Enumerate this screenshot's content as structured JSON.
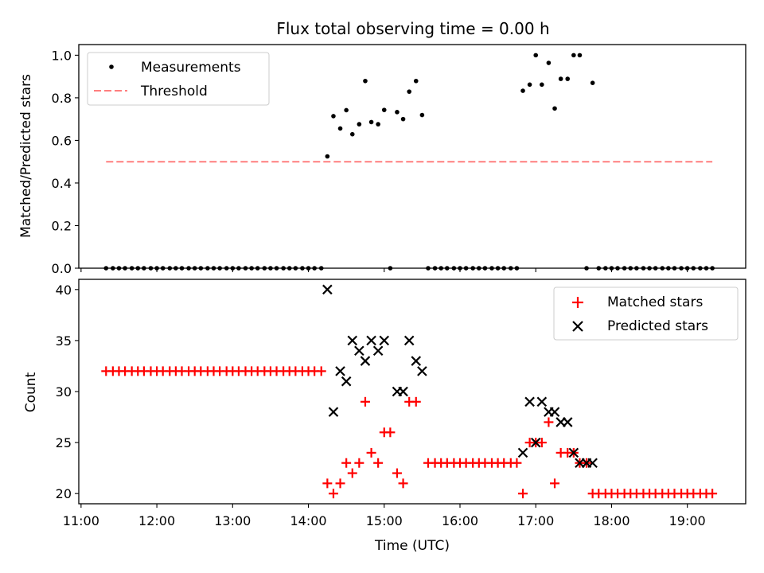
{
  "chart_data": [
    {
      "type": "scatter",
      "title": "Flux total observing time = 0.00 h",
      "xlabel": "",
      "ylabel": "Matched/Predicted stars",
      "xlim": [
        10.97,
        19.77
      ],
      "ylim": [
        0.0,
        1.05
      ],
      "x_ticks": [
        11,
        12,
        13,
        14,
        15,
        16,
        17,
        18,
        19
      ],
      "y_ticks": [
        0.0,
        0.2,
        0.4,
        0.6,
        0.8,
        1.0
      ],
      "y_tick_labels": [
        "0.0",
        "0.2",
        "0.4",
        "0.6",
        "0.8",
        "1.0"
      ],
      "legend": {
        "position": "upper-left",
        "entries": [
          "Measurements",
          "Threshold"
        ]
      },
      "threshold": {
        "name": "Threshold",
        "value": 0.5,
        "x_range": [
          11.33,
          19.33
        ],
        "color": "#ff7f7f"
      },
      "measurements": {
        "name": "Measurements",
        "color": "#000000",
        "points": [
          [
            11.33,
            0.0
          ],
          [
            11.42,
            0.0
          ],
          [
            11.5,
            0.0
          ],
          [
            11.58,
            0.0
          ],
          [
            11.67,
            0.0
          ],
          [
            11.75,
            0.0
          ],
          [
            11.83,
            0.0
          ],
          [
            11.92,
            0.0
          ],
          [
            12.0,
            0.0
          ],
          [
            12.08,
            0.0
          ],
          [
            12.17,
            0.0
          ],
          [
            12.25,
            0.0
          ],
          [
            12.33,
            0.0
          ],
          [
            12.42,
            0.0
          ],
          [
            12.5,
            0.0
          ],
          [
            12.58,
            0.0
          ],
          [
            12.67,
            0.0
          ],
          [
            12.75,
            0.0
          ],
          [
            12.83,
            0.0
          ],
          [
            12.92,
            0.0
          ],
          [
            13.0,
            0.0
          ],
          [
            13.08,
            0.0
          ],
          [
            13.17,
            0.0
          ],
          [
            13.25,
            0.0
          ],
          [
            13.33,
            0.0
          ],
          [
            13.42,
            0.0
          ],
          [
            13.5,
            0.0
          ],
          [
            13.58,
            0.0
          ],
          [
            13.67,
            0.0
          ],
          [
            13.75,
            0.0
          ],
          [
            13.83,
            0.0
          ],
          [
            13.92,
            0.0
          ],
          [
            14.0,
            0.0
          ],
          [
            14.08,
            0.0
          ],
          [
            14.17,
            0.0
          ],
          [
            14.25,
            0.525
          ],
          [
            14.33,
            0.714
          ],
          [
            14.42,
            0.656
          ],
          [
            14.5,
            0.742
          ],
          [
            14.58,
            0.629
          ],
          [
            14.67,
            0.676
          ],
          [
            14.75,
            0.879
          ],
          [
            14.83,
            0.686
          ],
          [
            14.92,
            0.676
          ],
          [
            15.0,
            0.743
          ],
          [
            15.08,
            0.0
          ],
          [
            15.17,
            0.733
          ],
          [
            15.25,
            0.7
          ],
          [
            15.33,
            0.829
          ],
          [
            15.42,
            0.879
          ],
          [
            15.5,
            0.719
          ],
          [
            15.58,
            0.0
          ],
          [
            15.67,
            0.0
          ],
          [
            15.75,
            0.0
          ],
          [
            15.83,
            0.0
          ],
          [
            15.92,
            0.0
          ],
          [
            16.0,
            0.0
          ],
          [
            16.08,
            0.0
          ],
          [
            16.17,
            0.0
          ],
          [
            16.25,
            0.0
          ],
          [
            16.33,
            0.0
          ],
          [
            16.42,
            0.0
          ],
          [
            16.5,
            0.0
          ],
          [
            16.58,
            0.0
          ],
          [
            16.67,
            0.0
          ],
          [
            16.75,
            0.0
          ],
          [
            16.83,
            0.833
          ],
          [
            16.92,
            0.862
          ],
          [
            17.0,
            1.0
          ],
          [
            17.08,
            0.862
          ],
          [
            17.17,
            0.964
          ],
          [
            17.25,
            0.75
          ],
          [
            17.33,
            0.889
          ],
          [
            17.42,
            0.889
          ],
          [
            17.5,
            1.0
          ],
          [
            17.58,
            1.0
          ],
          [
            17.67,
            0.0
          ],
          [
            17.75,
            0.87
          ],
          [
            17.83,
            0.0
          ],
          [
            17.92,
            0.0
          ],
          [
            18.0,
            0.0
          ],
          [
            18.08,
            0.0
          ],
          [
            18.17,
            0.0
          ],
          [
            18.25,
            0.0
          ],
          [
            18.33,
            0.0
          ],
          [
            18.42,
            0.0
          ],
          [
            18.5,
            0.0
          ],
          [
            18.58,
            0.0
          ],
          [
            18.67,
            0.0
          ],
          [
            18.75,
            0.0
          ],
          [
            18.83,
            0.0
          ],
          [
            18.92,
            0.0
          ],
          [
            19.0,
            0.0
          ],
          [
            19.08,
            0.0
          ],
          [
            19.17,
            0.0
          ],
          [
            19.25,
            0.0
          ],
          [
            19.33,
            0.0
          ]
        ]
      }
    },
    {
      "type": "scatter",
      "title": "",
      "xlabel": "Time (UTC)",
      "ylabel": "Count",
      "xlim": [
        10.97,
        19.77
      ],
      "ylim": [
        19.0,
        41.0
      ],
      "x_ticks": [
        11,
        12,
        13,
        14,
        15,
        16,
        17,
        18,
        19
      ],
      "x_tick_labels": [
        "11:00",
        "12:00",
        "13:00",
        "14:00",
        "15:00",
        "16:00",
        "17:00",
        "18:00",
        "19:00"
      ],
      "y_ticks": [
        20,
        25,
        30,
        35,
        40
      ],
      "y_tick_labels": [
        "20",
        "25",
        "30",
        "35",
        "40"
      ],
      "legend": {
        "position": "upper-right",
        "entries": [
          "Matched stars",
          "Predicted stars"
        ]
      },
      "series": [
        {
          "name": "Matched stars",
          "marker": "plus",
          "color": "#ff0000",
          "points": [
            [
              11.33,
              32
            ],
            [
              11.42,
              32
            ],
            [
              11.5,
              32
            ],
            [
              11.58,
              32
            ],
            [
              11.67,
              32
            ],
            [
              11.75,
              32
            ],
            [
              11.83,
              32
            ],
            [
              11.92,
              32
            ],
            [
              12.0,
              32
            ],
            [
              12.08,
              32
            ],
            [
              12.17,
              32
            ],
            [
              12.25,
              32
            ],
            [
              12.33,
              32
            ],
            [
              12.42,
              32
            ],
            [
              12.5,
              32
            ],
            [
              12.58,
              32
            ],
            [
              12.67,
              32
            ],
            [
              12.75,
              32
            ],
            [
              12.83,
              32
            ],
            [
              12.92,
              32
            ],
            [
              13.0,
              32
            ],
            [
              13.08,
              32
            ],
            [
              13.17,
              32
            ],
            [
              13.25,
              32
            ],
            [
              13.33,
              32
            ],
            [
              13.42,
              32
            ],
            [
              13.5,
              32
            ],
            [
              13.58,
              32
            ],
            [
              13.67,
              32
            ],
            [
              13.75,
              32
            ],
            [
              13.83,
              32
            ],
            [
              13.92,
              32
            ],
            [
              14.0,
              32
            ],
            [
              14.08,
              32
            ],
            [
              14.17,
              32
            ],
            [
              14.25,
              21
            ],
            [
              14.33,
              20
            ],
            [
              14.42,
              21
            ],
            [
              14.5,
              23
            ],
            [
              14.58,
              22
            ],
            [
              14.67,
              23
            ],
            [
              14.75,
              29
            ],
            [
              14.83,
              24
            ],
            [
              14.92,
              23
            ],
            [
              15.0,
              26
            ],
            [
              15.08,
              26
            ],
            [
              15.17,
              22
            ],
            [
              15.25,
              21
            ],
            [
              15.33,
              29
            ],
            [
              15.42,
              29
            ],
            [
              15.58,
              23
            ],
            [
              15.67,
              23
            ],
            [
              15.75,
              23
            ],
            [
              15.83,
              23
            ],
            [
              15.92,
              23
            ],
            [
              16.0,
              23
            ],
            [
              16.08,
              23
            ],
            [
              16.17,
              23
            ],
            [
              16.25,
              23
            ],
            [
              16.33,
              23
            ],
            [
              16.42,
              23
            ],
            [
              16.5,
              23
            ],
            [
              16.58,
              23
            ],
            [
              16.67,
              23
            ],
            [
              16.75,
              23
            ],
            [
              16.83,
              20
            ],
            [
              16.92,
              25
            ],
            [
              17.0,
              25
            ],
            [
              17.08,
              25
            ],
            [
              17.17,
              27
            ],
            [
              17.25,
              21
            ],
            [
              17.33,
              24
            ],
            [
              17.42,
              24
            ],
            [
              17.5,
              24
            ],
            [
              17.58,
              23
            ],
            [
              17.67,
              23
            ],
            [
              17.75,
              20
            ],
            [
              17.83,
              20
            ],
            [
              17.92,
              20
            ],
            [
              18.0,
              20
            ],
            [
              18.08,
              20
            ],
            [
              18.17,
              20
            ],
            [
              18.25,
              20
            ],
            [
              18.33,
              20
            ],
            [
              18.42,
              20
            ],
            [
              18.5,
              20
            ],
            [
              18.58,
              20
            ],
            [
              18.67,
              20
            ],
            [
              18.75,
              20
            ],
            [
              18.83,
              20
            ],
            [
              18.92,
              20
            ],
            [
              19.0,
              20
            ],
            [
              19.08,
              20
            ],
            [
              19.17,
              20
            ],
            [
              19.25,
              20
            ],
            [
              19.33,
              20
            ]
          ]
        },
        {
          "name": "Predicted stars",
          "marker": "x",
          "color": "#000000",
          "points": [
            [
              14.25,
              40
            ],
            [
              14.33,
              28
            ],
            [
              14.42,
              32
            ],
            [
              14.5,
              31
            ],
            [
              14.58,
              35
            ],
            [
              14.67,
              34
            ],
            [
              14.75,
              33
            ],
            [
              14.83,
              35
            ],
            [
              14.92,
              34
            ],
            [
              15.0,
              35
            ],
            [
              15.17,
              30
            ],
            [
              15.25,
              30
            ],
            [
              15.33,
              35
            ],
            [
              15.42,
              33
            ],
            [
              15.5,
              32
            ],
            [
              16.83,
              24
            ],
            [
              16.92,
              29
            ],
            [
              17.0,
              25
            ],
            [
              17.08,
              29
            ],
            [
              17.17,
              28
            ],
            [
              17.25,
              28
            ],
            [
              17.33,
              27
            ],
            [
              17.42,
              27
            ],
            [
              17.5,
              24
            ],
            [
              17.58,
              23
            ],
            [
              17.67,
              23
            ],
            [
              17.75,
              23
            ]
          ]
        }
      ]
    }
  ]
}
